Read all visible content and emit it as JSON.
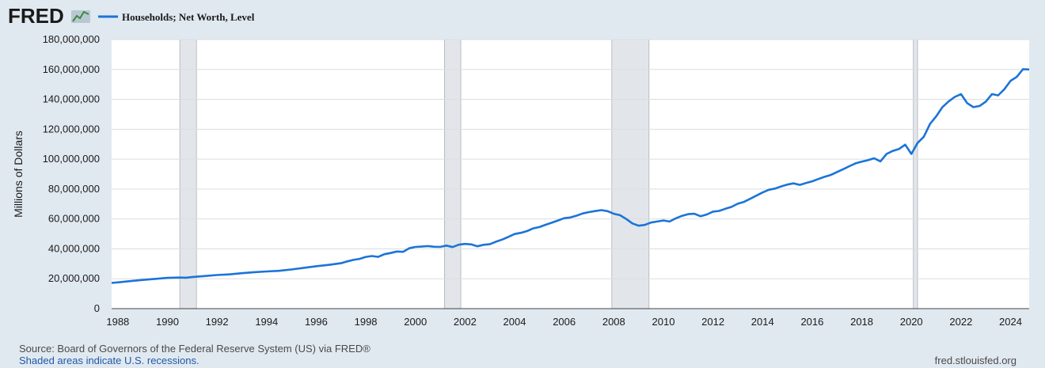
{
  "header": {
    "logo_text": "FRED",
    "logo_icon": "trend-line-icon",
    "legend_label": "Households; Net Worth, Level"
  },
  "footer": {
    "source": "Source: Board of Governors of the Federal Reserve System (US) via FRED®",
    "recession_note": "Shaded areas indicate U.S. recessions.",
    "site": "fred.stlouisfed.org"
  },
  "colors": {
    "background": "#e1e9f0",
    "plot_background": "#ffffff",
    "line": "#1b74d8",
    "recession": "#e2e6ea",
    "grid": "#dddddd"
  },
  "chart_data": {
    "type": "line",
    "title": "",
    "xlabel": "",
    "ylabel": "Millions of Dollars",
    "xlim": [
      1987.75,
      2024.75
    ],
    "ylim": [
      0,
      180000000
    ],
    "grid": "horizontal",
    "x_ticks": [
      1988,
      1990,
      1992,
      1994,
      1996,
      1998,
      2000,
      2002,
      2004,
      2006,
      2008,
      2010,
      2012,
      2014,
      2016,
      2018,
      2020,
      2022,
      2024
    ],
    "y_ticks": [
      0,
      20000000,
      40000000,
      60000000,
      80000000,
      100000000,
      120000000,
      140000000,
      160000000,
      180000000
    ],
    "y_tick_labels": [
      "0",
      "20,000,000",
      "40,000,000",
      "60,000,000",
      "80,000,000",
      "100,000,000",
      "120,000,000",
      "140,000,000",
      "160,000,000",
      "180,000,000"
    ],
    "recessions": [
      [
        1990.5,
        1991.17
      ],
      [
        2001.17,
        2001.83
      ],
      [
        2007.92,
        2009.42
      ],
      [
        2020.08,
        2020.25
      ]
    ],
    "series": [
      {
        "name": "Households; Net Worth, Level",
        "x": [
          1987.75,
          1988.0,
          1988.5,
          1989.0,
          1989.5,
          1990.0,
          1990.5,
          1990.75,
          1991.0,
          1991.5,
          1992.0,
          1992.5,
          1993.0,
          1993.5,
          1994.0,
          1994.5,
          1995.0,
          1995.5,
          1996.0,
          1996.5,
          1997.0,
          1997.25,
          1997.5,
          1997.75,
          1998.0,
          1998.25,
          1998.5,
          1998.75,
          1999.0,
          1999.25,
          1999.5,
          1999.75,
          2000.0,
          2000.25,
          2000.5,
          2000.75,
          2001.0,
          2001.25,
          2001.5,
          2001.75,
          2002.0,
          2002.25,
          2002.5,
          2002.75,
          2003.0,
          2003.25,
          2003.5,
          2003.75,
          2004.0,
          2004.25,
          2004.5,
          2004.75,
          2005.0,
          2005.25,
          2005.5,
          2005.75,
          2006.0,
          2006.25,
          2006.5,
          2006.75,
          2007.0,
          2007.25,
          2007.5,
          2007.75,
          2008.0,
          2008.25,
          2008.5,
          2008.75,
          2009.0,
          2009.25,
          2009.5,
          2009.75,
          2010.0,
          2010.25,
          2010.5,
          2010.75,
          2011.0,
          2011.25,
          2011.5,
          2011.75,
          2012.0,
          2012.25,
          2012.5,
          2012.75,
          2013.0,
          2013.25,
          2013.5,
          2013.75,
          2014.0,
          2014.25,
          2014.5,
          2014.75,
          2015.0,
          2015.25,
          2015.5,
          2015.75,
          2016.0,
          2016.25,
          2016.5,
          2016.75,
          2017.0,
          2017.25,
          2017.5,
          2017.75,
          2018.0,
          2018.25,
          2018.5,
          2018.75,
          2019.0,
          2019.25,
          2019.5,
          2019.75,
          2020.0,
          2020.25,
          2020.5,
          2020.75,
          2021.0,
          2021.25,
          2021.5,
          2021.75,
          2022.0,
          2022.25,
          2022.5,
          2022.75,
          2023.0,
          2023.25,
          2023.5,
          2023.75,
          2024.0,
          2024.25,
          2024.5,
          2024.75
        ],
        "values": [
          17200000,
          17600000,
          18400000,
          19200000,
          19900000,
          20600000,
          20800000,
          20700000,
          21100000,
          21800000,
          22500000,
          22900000,
          23700000,
          24400000,
          24900000,
          25300000,
          26200000,
          27300000,
          28400000,
          29300000,
          30400000,
          31600000,
          32600000,
          33300000,
          34600000,
          35200000,
          34600000,
          36400000,
          37200000,
          38200000,
          38000000,
          40400000,
          41300000,
          41500000,
          41900000,
          41400000,
          41300000,
          42200000,
          41200000,
          42800000,
          43300000,
          43000000,
          41700000,
          42700000,
          43100000,
          44800000,
          46200000,
          48000000,
          49900000,
          50700000,
          51900000,
          53700000,
          54600000,
          56100000,
          57500000,
          59000000,
          60500000,
          61000000,
          62200000,
          63700000,
          64600000,
          65300000,
          65900000,
          65200000,
          63500000,
          62500000,
          60000000,
          57000000,
          55500000,
          56000000,
          57600000,
          58300000,
          59000000,
          58300000,
          60400000,
          62100000,
          63200000,
          63500000,
          61800000,
          63000000,
          64900000,
          65400000,
          66800000,
          68100000,
          70200000,
          71400000,
          73500000,
          75600000,
          77700000,
          79500000,
          80300000,
          81800000,
          83000000,
          83800000,
          82800000,
          84000000,
          85200000,
          86700000,
          88200000,
          89400000,
          91400000,
          93300000,
          95300000,
          97200000,
          98300000,
          99300000,
          100600000,
          98500000,
          103500000,
          105500000,
          106800000,
          109700000,
          103500000,
          110800000,
          115000000,
          123500000,
          128600000,
          134800000,
          138600000,
          141600000,
          143500000,
          137500000,
          134800000,
          135600000,
          138500000,
          143500000,
          142700000,
          146800000,
          152400000,
          155000000,
          160200000,
          160000000
        ]
      }
    ]
  }
}
